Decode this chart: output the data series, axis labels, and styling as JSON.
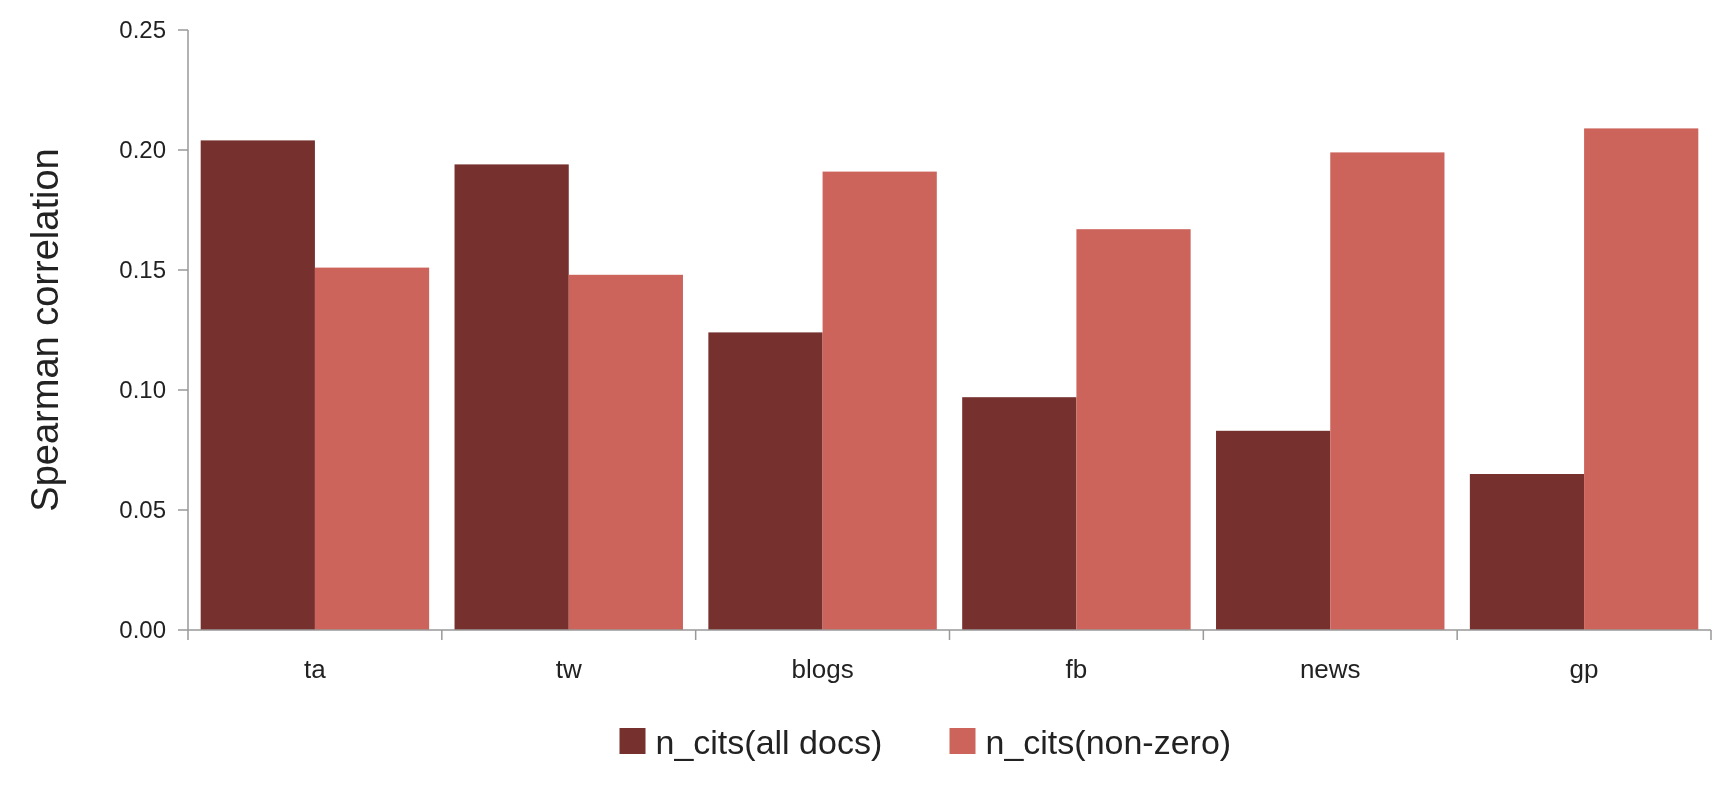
{
  "chart_data": {
    "type": "bar",
    "ylabel": "Spearman correlation",
    "categories": [
      "ta",
      "tw",
      "blogs",
      "fb",
      "news",
      "gp"
    ],
    "series": [
      {
        "name": "n_cits(all docs)",
        "color": "#76302d",
        "values": [
          0.204,
          0.194,
          0.124,
          0.097,
          0.083,
          0.065
        ]
      },
      {
        "name": "n_cits(non-zero)",
        "color": "#cd645c",
        "values": [
          0.151,
          0.148,
          0.191,
          0.167,
          0.199,
          0.209
        ]
      }
    ],
    "ylim": [
      0,
      0.25
    ],
    "yticks": [
      {
        "value": 0,
        "label": "0.00"
      },
      {
        "value": 0.05,
        "label": "0.05"
      },
      {
        "value": 0.1,
        "label": "0.10"
      },
      {
        "value": 0.15,
        "label": "0.15"
      },
      {
        "value": 0.2,
        "label": "0.20"
      },
      {
        "value": 0.25,
        "label": "0.25"
      }
    ],
    "grid": false,
    "legend": "bottom"
  }
}
